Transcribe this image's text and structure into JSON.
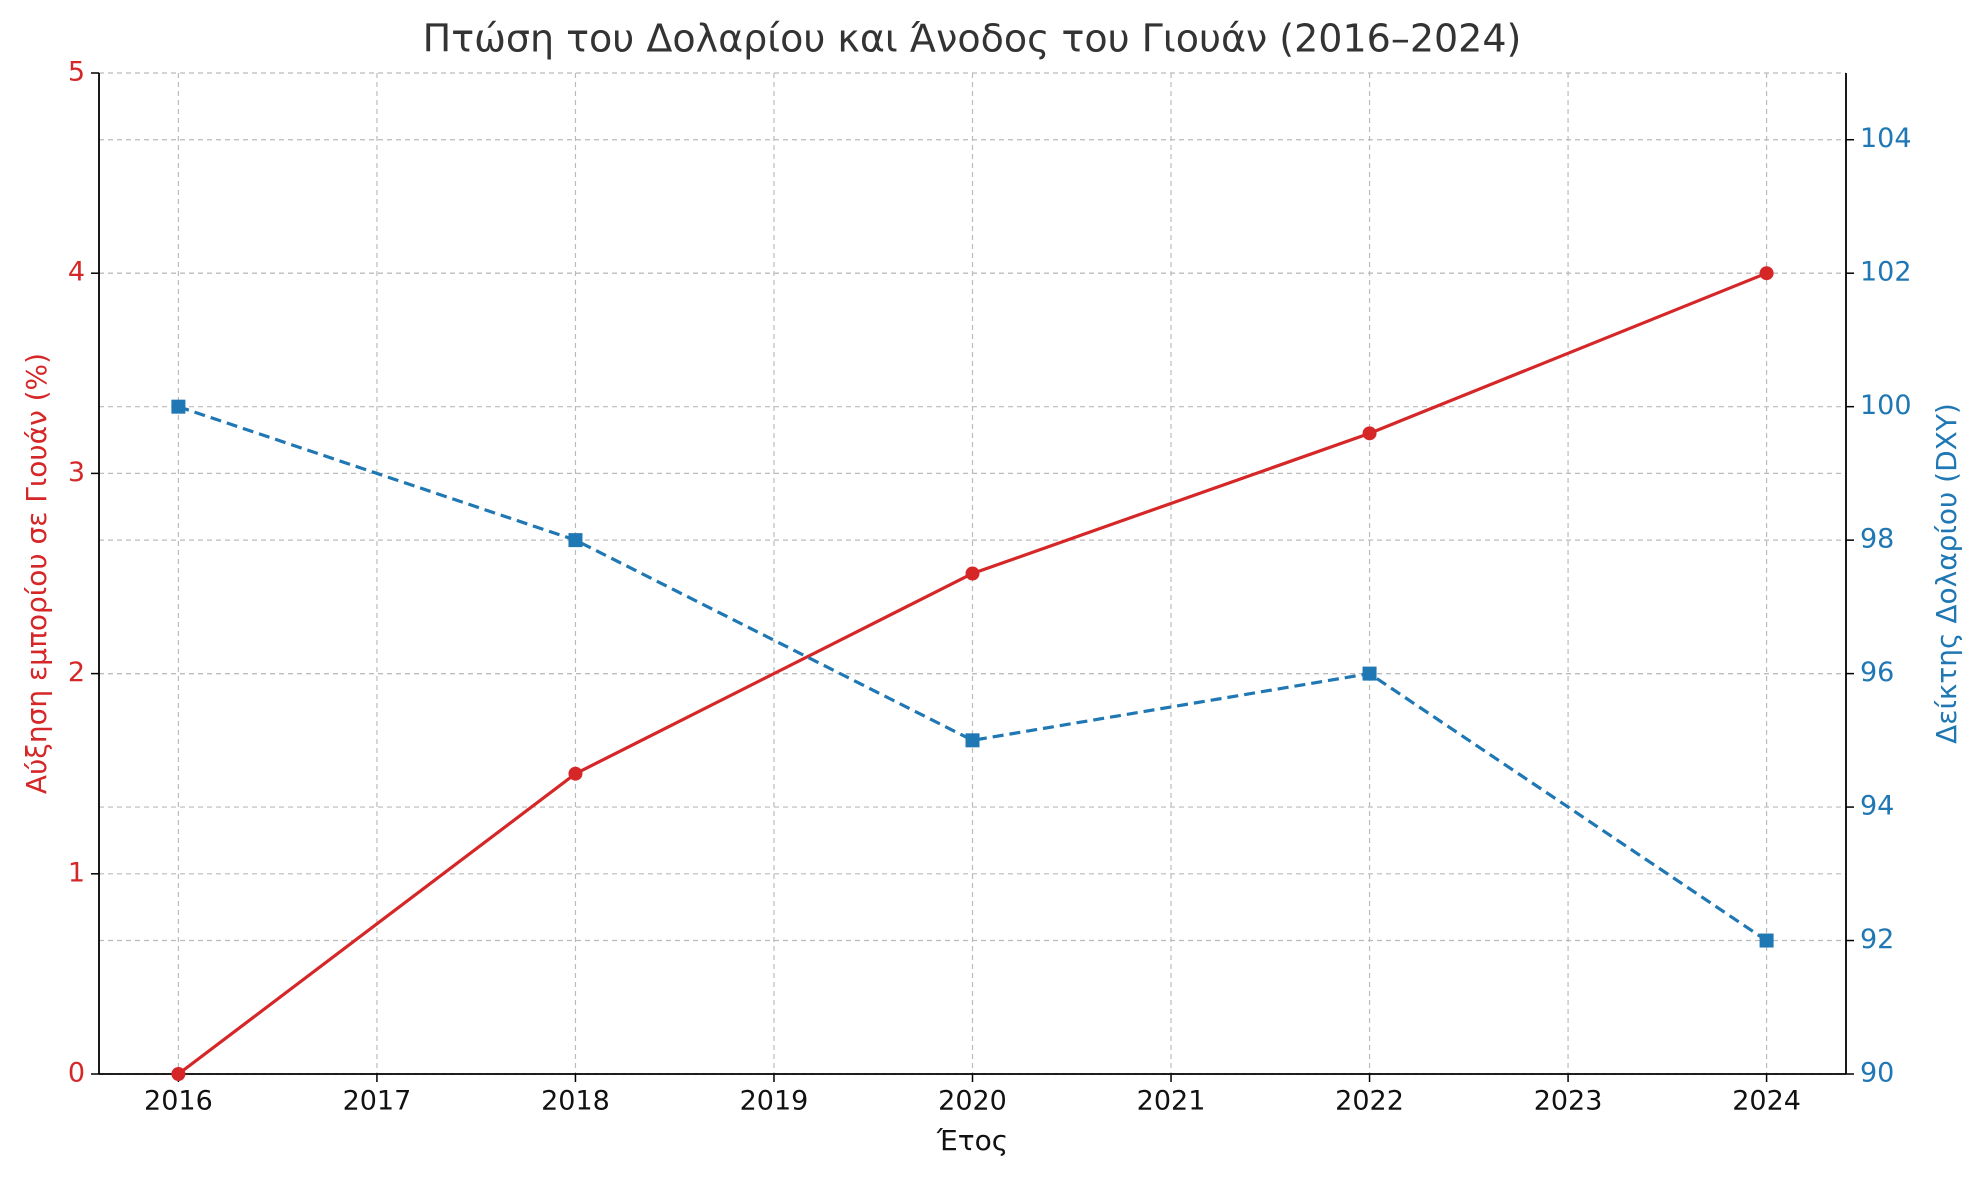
{
  "chart_data": {
    "type": "line",
    "title": "Πτώση του Δολαρίου και Άνοδος του Γιουάν (2016–2024)",
    "xlabel": "Έτος",
    "ylabel": "Αύξηση εμπορίου σε Γιουάν (%)",
    "y2label": "Δείκτης Δολαρίου (DXY)",
    "x": [
      2016,
      2018,
      2020,
      2022,
      2024
    ],
    "series": [
      {
        "name": "Αύξηση εμπορίου σε Γιουάν (%)",
        "color": "#d62728",
        "values": [
          0,
          1.5,
          2.5,
          3.2,
          4
        ],
        "axis": "y",
        "linestyle": "solid",
        "marker": "circle"
      },
      {
        "name": "Δείκτης Δολαρίου (DXY)",
        "color": "#1f77b4",
        "values": [
          100,
          98,
          95,
          96,
          92
        ],
        "axis": "y2",
        "linestyle": "dashed",
        "marker": "square"
      }
    ],
    "xlim": [
      2015.6,
      2024.4
    ],
    "xticks": [
      2016,
      2017,
      2018,
      2019,
      2020,
      2021,
      2022,
      2023,
      2024
    ],
    "ylim": [
      0,
      5
    ],
    "yticks": [
      0,
      1,
      2,
      3,
      4,
      5
    ],
    "y2lim": [
      90,
      105
    ],
    "y2ticks": [
      90,
      92,
      94,
      96,
      98,
      100,
      102,
      104
    ],
    "grid": true
  }
}
